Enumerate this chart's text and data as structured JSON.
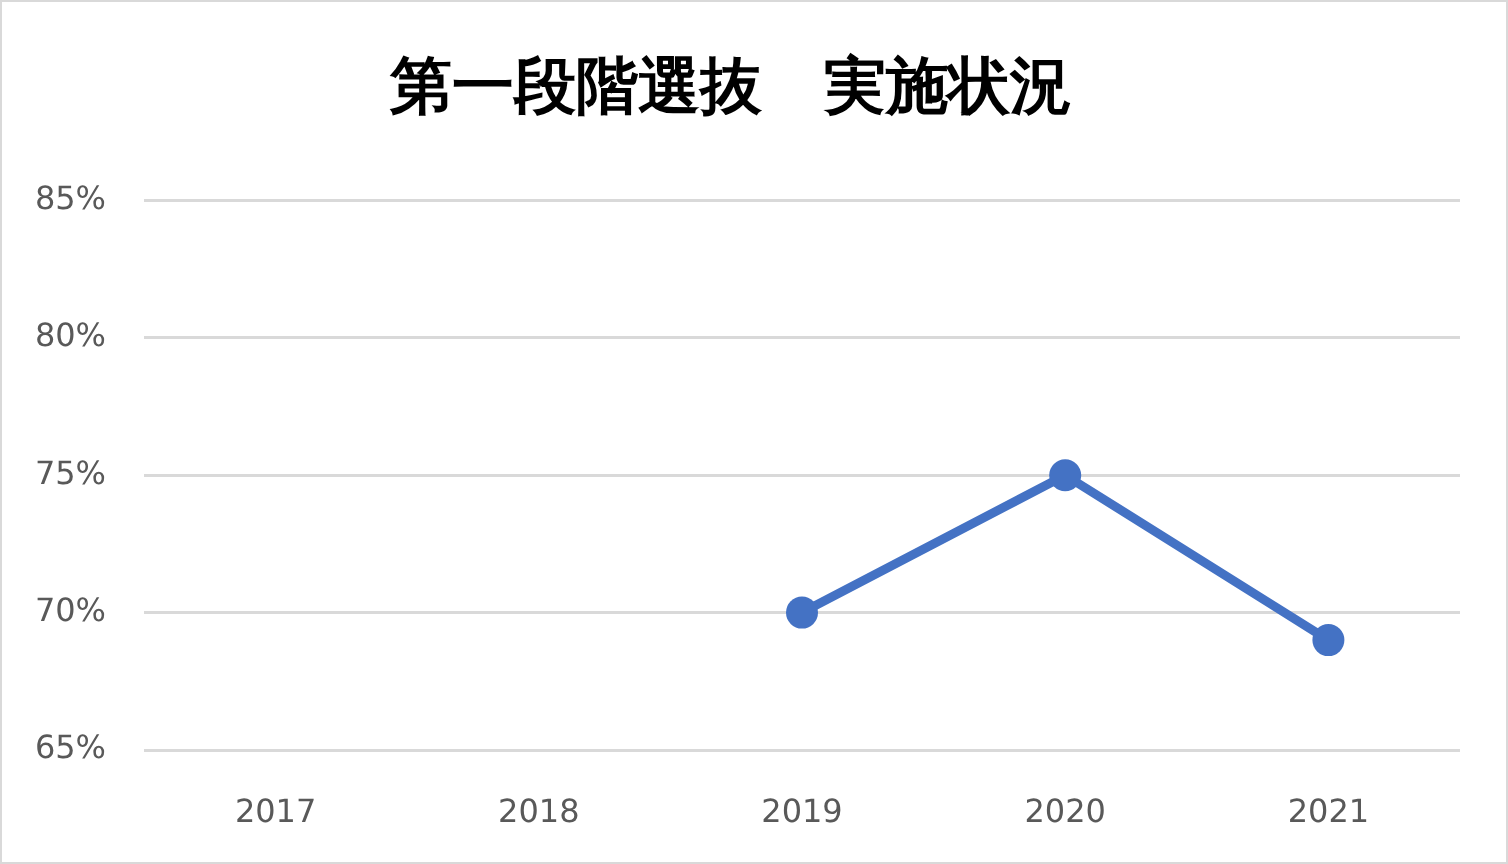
{
  "chart_data": {
    "type": "line",
    "title": "第一段階選抜　実施状況",
    "categories": [
      "2017",
      "2018",
      "2019",
      "2020",
      "2021"
    ],
    "series": [
      {
        "color": "#4472c4",
        "values": [
          null,
          null,
          70,
          75,
          69
        ]
      }
    ],
    "ylim": [
      65,
      85
    ],
    "yticks": [
      {
        "value": 65,
        "label": "65%"
      },
      {
        "value": 70,
        "label": "70%"
      },
      {
        "value": 75,
        "label": "75%"
      },
      {
        "value": 80,
        "label": "80%"
      },
      {
        "value": 85,
        "label": "85%"
      }
    ],
    "grid": "y",
    "legend": false,
    "marker": "circle",
    "line_style": "solid"
  }
}
